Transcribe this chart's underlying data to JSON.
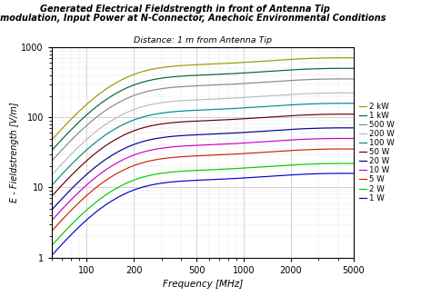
{
  "title_line1": "Generated Electrical Fieldstrength in front of Antenna Tip",
  "title_line2": "no modulation, Input Power at N-Connector, Anechoic Environmental Conditions",
  "subtitle": "Distance: 1 m from Antenna Tip",
  "xlabel": "Frequency [MHz]",
  "ylabel": "E - Fieldstrength [V/m]",
  "xmin": 60,
  "xmax": 5000,
  "ymin": 1,
  "ymax": 1000,
  "series": [
    {
      "label": "2 kW",
      "power": 2000,
      "color": "#999900",
      "plateau": 580
    },
    {
      "label": "1 kW",
      "power": 1000,
      "color": "#006633",
      "plateau": 410
    },
    {
      "label": "500 W",
      "power": 500,
      "color": "#888888",
      "plateau": 290
    },
    {
      "label": "200 W",
      "power": 200,
      "color": "#bbbbbb",
      "plateau": 183
    },
    {
      "label": "100 W",
      "power": 100,
      "color": "#008888",
      "plateau": 130
    },
    {
      "label": "50 W",
      "power": 50,
      "color": "#660000",
      "plateau": 91
    },
    {
      "label": "20 W",
      "power": 20,
      "color": "#000088",
      "plateau": 58
    },
    {
      "label": "10 W",
      "power": 10,
      "color": "#cc00cc",
      "plateau": 41
    },
    {
      "label": "5 W",
      "power": 5,
      "color": "#cc2200",
      "plateau": 29
    },
    {
      "label": "2 W",
      "power": 2,
      "color": "#00cc00",
      "plateau": 18
    },
    {
      "label": "1 W",
      "power": 1,
      "color": "#0000cc",
      "plateau": 13
    }
  ]
}
